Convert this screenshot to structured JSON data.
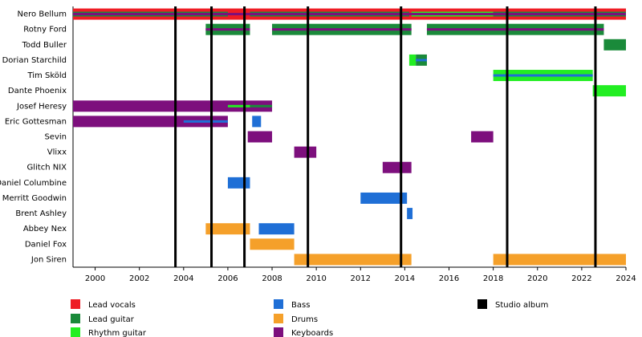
{
  "chart_data": {
    "type": "timeline",
    "xlim": [
      1999,
      2024
    ],
    "xticks": [
      2000,
      2002,
      2004,
      2006,
      2008,
      2010,
      2012,
      2014,
      2016,
      2018,
      2020,
      2022,
      2024
    ],
    "roles": [
      {
        "name": "Lead vocals",
        "color": "#ee1c24"
      },
      {
        "name": "Lead guitar",
        "color": "#1a8a3a"
      },
      {
        "name": "Rhythm guitar",
        "color": "#22ee22"
      },
      {
        "name": "Bass",
        "color": "#1f6fd6"
      },
      {
        "name": "Drums",
        "color": "#f5a02a"
      },
      {
        "name": "Keyboards",
        "color": "#7d0f7d"
      }
    ],
    "album_legend": "Studio album",
    "album_color": "#000000",
    "albums": [
      2003.63,
      2005.26,
      2006.75,
      2009.62,
      2013.83,
      2018.63,
      2022.62
    ],
    "members": [
      {
        "name": "Nero Bellum",
        "bars": [
          {
            "role": 0,
            "start": 1999,
            "end": 2024,
            "layer": 0
          },
          {
            "role": 1,
            "start": 1999,
            "end": 2006,
            "layer": 1
          },
          {
            "role": 1,
            "start": 2007,
            "end": 2014.2,
            "layer": 1
          },
          {
            "role": 2,
            "start": 2014.3,
            "end": 2018,
            "layer": 1
          },
          {
            "role": 1,
            "start": 2018,
            "end": 2024,
            "layer": 1
          },
          {
            "role": 5,
            "start": 1999,
            "end": 2024,
            "layer": 2
          }
        ]
      },
      {
        "name": "Rotny Ford",
        "bars": [
          {
            "role": 1,
            "start": 2005,
            "end": 2007,
            "layer": 0
          },
          {
            "role": 1,
            "start": 2008,
            "end": 2014.3,
            "layer": 0
          },
          {
            "role": 1,
            "start": 2015,
            "end": 2023,
            "layer": 0
          },
          {
            "role": 5,
            "start": 2005,
            "end": 2007,
            "layer": 2
          },
          {
            "role": 5,
            "start": 2008,
            "end": 2014.3,
            "layer": 2
          },
          {
            "role": 5,
            "start": 2015,
            "end": 2023,
            "layer": 2
          }
        ]
      },
      {
        "name": "Todd Buller",
        "bars": [
          {
            "role": 1,
            "start": 2023,
            "end": 2024,
            "layer": 0
          }
        ]
      },
      {
        "name": "Dorian Starchild",
        "bars": [
          {
            "role": 2,
            "start": 2014.2,
            "end": 2014.5,
            "layer": 0
          },
          {
            "role": 1,
            "start": 2014.5,
            "end": 2015,
            "layer": 0
          },
          {
            "role": 3,
            "start": 2014.5,
            "end": 2015,
            "layer": 2
          }
        ]
      },
      {
        "name": "Tim Sköld",
        "bars": [
          {
            "role": 2,
            "start": 2018,
            "end": 2022.5,
            "layer": 0
          },
          {
            "role": 3,
            "start": 2018,
            "end": 2022.5,
            "layer": 2
          }
        ]
      },
      {
        "name": "Dante Phoenix",
        "bars": [
          {
            "role": 2,
            "start": 2022.5,
            "end": 2024,
            "layer": 0
          }
        ]
      },
      {
        "name": "Josef Heresy",
        "bars": [
          {
            "role": 5,
            "start": 1999,
            "end": 2008,
            "layer": 0
          },
          {
            "role": 2,
            "start": 2006,
            "end": 2007,
            "layer": 2
          },
          {
            "role": 1,
            "start": 2007,
            "end": 2008,
            "layer": 2
          }
        ]
      },
      {
        "name": "Eric Gottesman",
        "bars": [
          {
            "role": 5,
            "start": 1999,
            "end": 2006,
            "layer": 0
          },
          {
            "role": 3,
            "start": 2004,
            "end": 2006,
            "layer": 2
          },
          {
            "role": 3,
            "start": 2007.1,
            "end": 2007.5,
            "layer": 0
          }
        ]
      },
      {
        "name": "Sevin",
        "bars": [
          {
            "role": 5,
            "start": 2006.9,
            "end": 2008,
            "layer": 0
          },
          {
            "role": 5,
            "start": 2017,
            "end": 2018,
            "layer": 0
          }
        ]
      },
      {
        "name": "Vlixx",
        "bars": [
          {
            "role": 5,
            "start": 2009,
            "end": 2010,
            "layer": 0
          }
        ]
      },
      {
        "name": "Glitch NIX",
        "bars": [
          {
            "role": 5,
            "start": 2013,
            "end": 2014.3,
            "layer": 0
          }
        ]
      },
      {
        "name": "Daniel Columbine",
        "bars": [
          {
            "role": 3,
            "start": 2006,
            "end": 2007,
            "layer": 0
          }
        ]
      },
      {
        "name": "Merritt Goodwin",
        "bars": [
          {
            "role": 3,
            "start": 2012,
            "end": 2014.1,
            "layer": 0
          }
        ]
      },
      {
        "name": "Brent Ashley",
        "bars": [
          {
            "role": 3,
            "start": 2014.1,
            "end": 2014.35,
            "layer": 0
          }
        ]
      },
      {
        "name": "Abbey Nex",
        "bars": [
          {
            "role": 4,
            "start": 2005,
            "end": 2007,
            "layer": 0
          },
          {
            "role": 3,
            "start": 2007.4,
            "end": 2009,
            "layer": 0
          }
        ]
      },
      {
        "name": "Daniel Fox",
        "bars": [
          {
            "role": 4,
            "start": 2007,
            "end": 2009,
            "layer": 0
          }
        ]
      },
      {
        "name": "Jon Siren",
        "bars": [
          {
            "role": 4,
            "start": 2009,
            "end": 2014.3,
            "layer": 0
          },
          {
            "role": 4,
            "start": 2018,
            "end": 2024,
            "layer": 0
          }
        ]
      }
    ]
  }
}
